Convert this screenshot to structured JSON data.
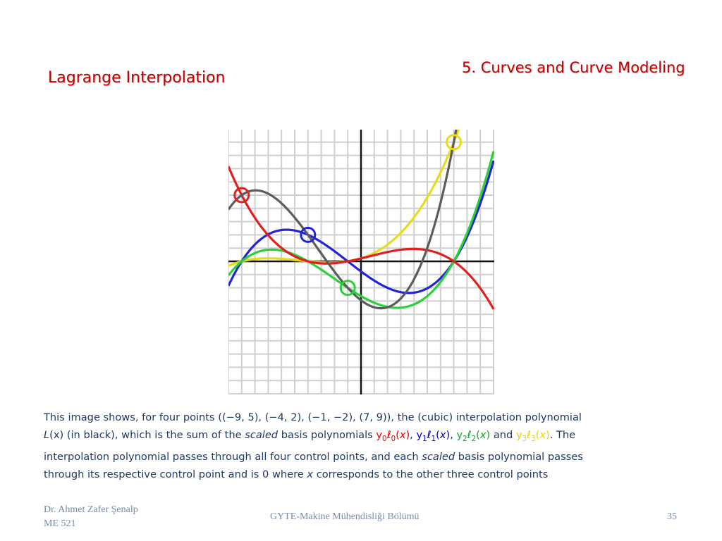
{
  "header": {
    "section_title": "5. Curves and Curve Modeling"
  },
  "slide": {
    "title": "Lagrange Interpolation"
  },
  "figure": {
    "control_points": [
      [
        -9,
        5
      ],
      [
        -4,
        2
      ],
      [
        -1,
        -2
      ],
      [
        7,
        9
      ]
    ],
    "x_range": [
      -10,
      10
    ],
    "y_range": [
      -10,
      10
    ],
    "grid": true,
    "colors": {
      "basis0": "#e02020",
      "basis1": "#2323d8",
      "basis2": "#2ed03a",
      "basis3": "#e6dc1a",
      "interp": "#5c5c5c"
    }
  },
  "caption": {
    "l1_a": "This image shows, for four points ((−9, 5), (−4, 2), (−1, −2), (7, 9)), the (cubic) interpolation polynomial",
    "l2_L": "L",
    "l2_Lx": "(x)",
    "l2_black": " (in black), ",
    "l2_b": "which is the sum of the ",
    "l2_scaled": "scaled",
    "l2_c": " basis polynomials ",
    "y": "y",
    "ell": "ℓ",
    "x": "x",
    "i0": "0",
    "i1": "1",
    "i2": "2",
    "i3": "3",
    "comma": ", ",
    "and": " and ",
    "period": ". ",
    "l2_the": "The",
    "l3_a": "interpolation polynomial passes through all four control points, and each ",
    "l3_scaled": "scaled",
    "l3_b": " basis polynomial passes",
    "l4_a": "through its respective control point and is 0 where ",
    "l4_x": "x",
    "l4_b": " corresponds to the other three control points"
  },
  "footer": {
    "author": "Dr. Ahmet Zafer Şenalp",
    "course": "ME 521",
    "department": "GYTE-Makine Mühendisliği Bölümü",
    "page": "35"
  }
}
